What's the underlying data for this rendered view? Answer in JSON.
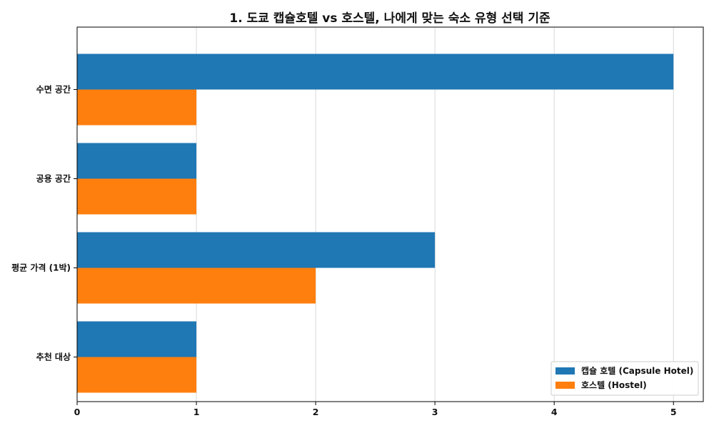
{
  "chart_data": {
    "type": "bar",
    "orientation": "horizontal",
    "title": "1. 도쿄 캡슐호텔 vs 호스텔, 나에게 맞는 숙소 유형 선택 기준",
    "xlabel": "",
    "ylabel": "",
    "categories": [
      "수면 공간",
      "공용 공간",
      "평균 가격 (1박)",
      "추천 대상"
    ],
    "xlim": [
      0,
      5.25
    ],
    "xticks": [
      0,
      1,
      2,
      3,
      4,
      5
    ],
    "grid": "x",
    "legend_position": "lower-right",
    "series": [
      {
        "name": "캡슐 호텔 (Capsule Hotel)",
        "color": "#1f77b4",
        "values": [
          5,
          1,
          3,
          1
        ]
      },
      {
        "name": "호스텔 (Hostel)",
        "color": "#ff7f0e",
        "values": [
          1,
          1,
          2,
          1
        ]
      }
    ]
  }
}
